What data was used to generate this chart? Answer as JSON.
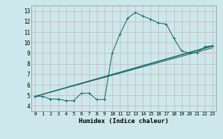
{
  "xlabel": "Humidex (Indice chaleur)",
  "bg_color": "#cce8ec",
  "grid_color": "#b0d0d8",
  "line_color": "#1a6b6b",
  "xlim": [
    -0.5,
    23.5
  ],
  "ylim": [
    3.5,
    13.5
  ],
  "xticks": [
    0,
    1,
    2,
    3,
    4,
    5,
    6,
    7,
    8,
    9,
    10,
    11,
    12,
    13,
    14,
    15,
    16,
    17,
    18,
    19,
    20,
    21,
    22,
    23
  ],
  "yticks": [
    4,
    5,
    6,
    7,
    8,
    9,
    10,
    11,
    12,
    13
  ],
  "line1_x": [
    0,
    1,
    2,
    3,
    4,
    5,
    6,
    7,
    8,
    9,
    10,
    11,
    12,
    13,
    14,
    15,
    16,
    17,
    18,
    19,
    20,
    21,
    22,
    23
  ],
  "line1_y": [
    4.9,
    4.9,
    4.65,
    4.65,
    4.5,
    4.5,
    5.2,
    5.2,
    4.6,
    4.6,
    9.0,
    10.8,
    12.3,
    12.85,
    12.5,
    12.2,
    11.85,
    11.75,
    10.4,
    9.2,
    9.0,
    9.05,
    9.6,
    9.7
  ],
  "line2_x": [
    0,
    23
  ],
  "line2_y": [
    4.9,
    9.7
  ],
  "line3_x": [
    0,
    23
  ],
  "line3_y": [
    4.9,
    9.65
  ],
  "line4_x": [
    0,
    23
  ],
  "line4_y": [
    4.9,
    9.5
  ]
}
